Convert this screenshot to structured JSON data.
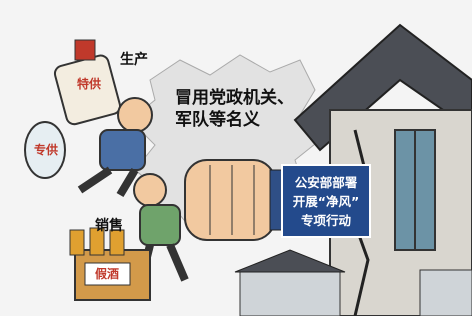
{
  "caption": {
    "lines": [
      "冒用党政机关、",
      "军队等名义"
    ]
  },
  "labels": {
    "produce": "生产",
    "sell": "销售",
    "special_supply": "特供",
    "exclusive_supply": "专供",
    "fake_liquor": "假酒"
  },
  "notice": {
    "lines": [
      "公安部部署",
      "开展“净风”",
      "专项行动"
    ]
  }
}
